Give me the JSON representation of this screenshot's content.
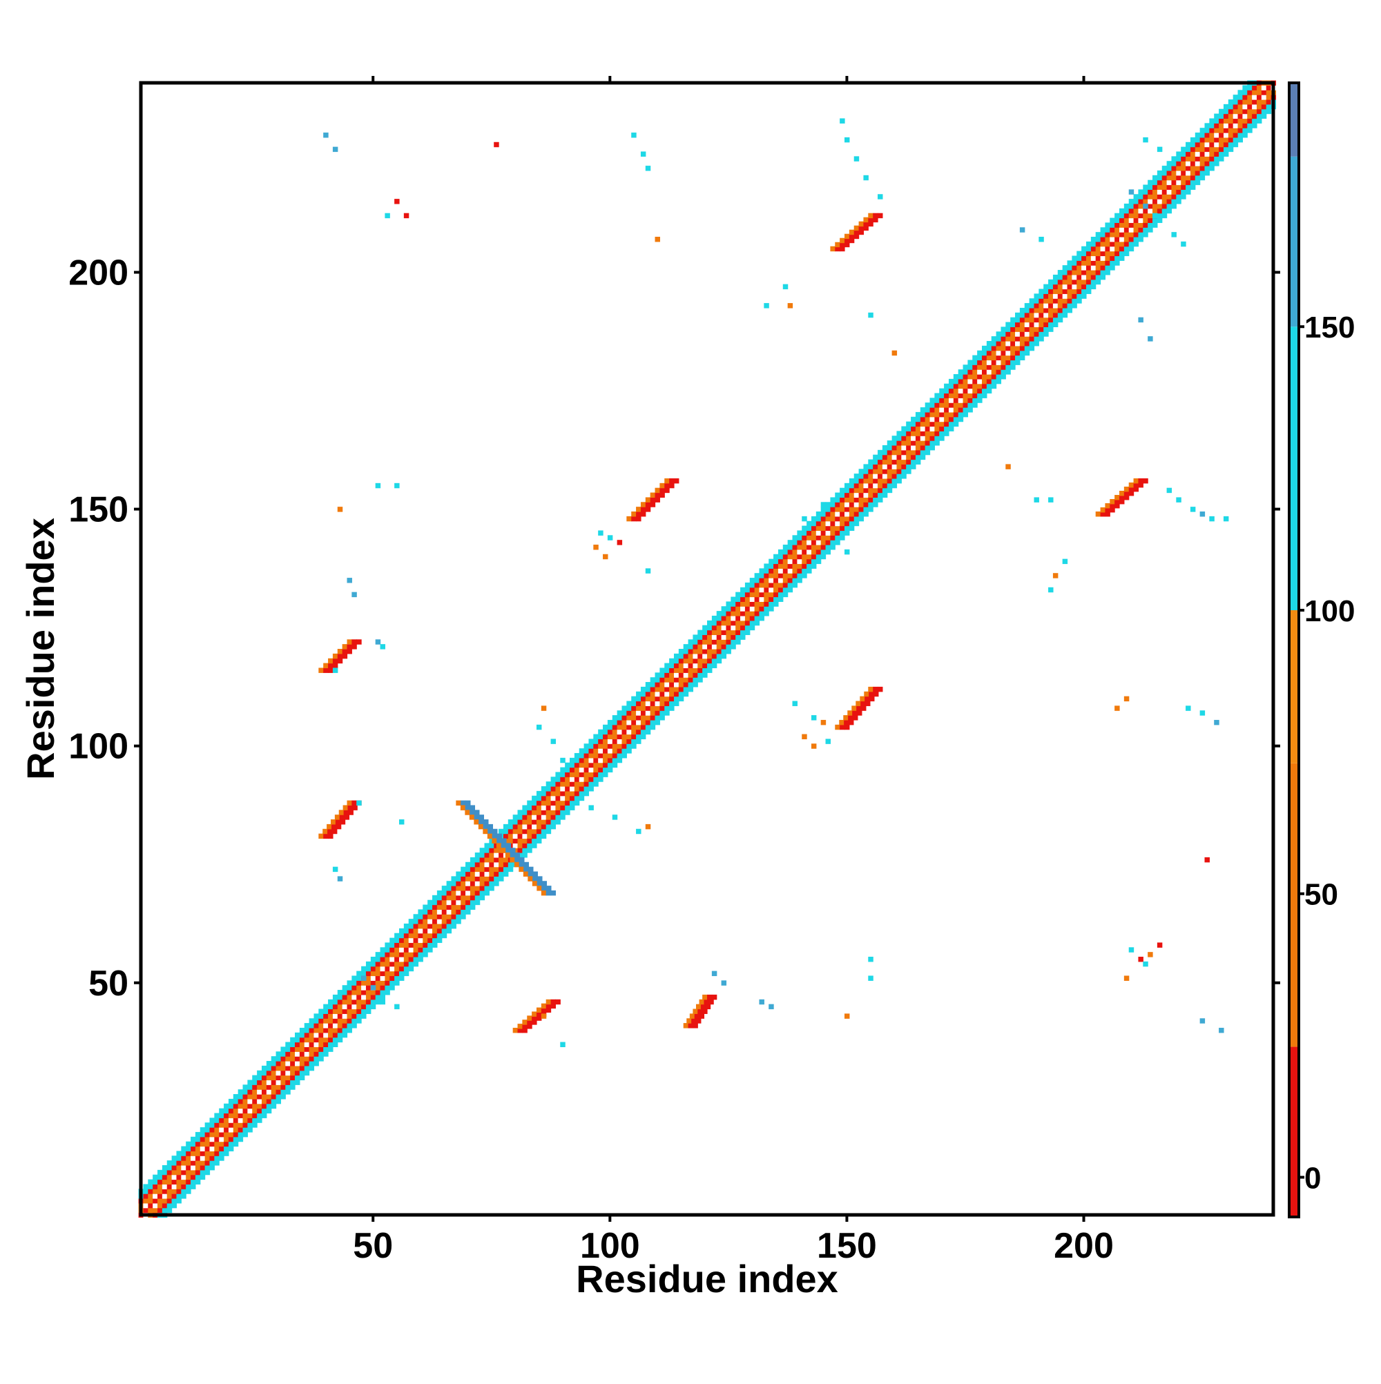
{
  "chart_data": {
    "type": "heatmap",
    "title": "",
    "xlabel": "Residue index",
    "ylabel": "Residue index",
    "xlim": [
      1,
      240
    ],
    "ylim": [
      1,
      240
    ],
    "x_ticks": [
      50,
      100,
      150,
      200
    ],
    "y_ticks": [
      50,
      100,
      150,
      200
    ],
    "grid": false,
    "colorbar": {
      "ticks": [
        0,
        50,
        100,
        150
      ],
      "range": [
        -7,
        193
      ],
      "bands": [
        {
          "from": -7,
          "to": 23,
          "color": "#e8130f"
        },
        {
          "from": 23,
          "to": 73,
          "color": "#f07a0c"
        },
        {
          "from": 73,
          "to": 100,
          "color": "#f28c12"
        },
        {
          "from": 100,
          "to": 150,
          "color": "#1ed8e6"
        },
        {
          "from": 150,
          "to": 180,
          "color": "#3fa9d3"
        },
        {
          "from": 180,
          "to": 193,
          "color": "#5b7fb5"
        }
      ]
    },
    "diagonal_band": {
      "from": 1,
      "to": 240,
      "half_width": 5,
      "colors": [
        "#e8130f",
        "#f07a0c",
        "#1ed8e6"
      ]
    },
    "strands": [
      {
        "x0": 40,
        "y0": 81,
        "x1": 46,
        "y1": 88,
        "color": "#e8130f"
      },
      {
        "x0": 40,
        "y0": 116,
        "x1": 46,
        "y1": 122,
        "color": "#e8130f"
      },
      {
        "x0": 81,
        "y0": 40,
        "x1": 88,
        "y1": 46,
        "color": "#e8130f"
      },
      {
        "x0": 117,
        "y0": 41,
        "x1": 121,
        "y1": 47,
        "color": "#e8130f"
      },
      {
        "x0": 105,
        "y0": 148,
        "x1": 113,
        "y1": 156,
        "color": "#e8130f"
      },
      {
        "x0": 149,
        "y0": 104,
        "x1": 156,
        "y1": 112,
        "color": "#e8130f"
      },
      {
        "x0": 148,
        "y0": 205,
        "x1": 156,
        "y1": 212,
        "color": "#e8130f"
      },
      {
        "x0": 204,
        "y0": 149,
        "x1": 212,
        "y1": 156,
        "color": "#e8130f"
      },
      {
        "x0": 69,
        "y0": 88,
        "x1": 87,
        "y1": 69,
        "color": "#3f8fc8"
      }
    ],
    "points": [
      {
        "x": 51,
        "y": 155,
        "v": 110
      },
      {
        "x": 55,
        "y": 155,
        "v": 110
      },
      {
        "x": 43,
        "y": 150,
        "v": 40
      },
      {
        "x": 51,
        "y": 122,
        "v": 160
      },
      {
        "x": 52,
        "y": 121,
        "v": 110
      },
      {
        "x": 42,
        "y": 116,
        "v": 110
      },
      {
        "x": 45,
        "y": 135,
        "v": 160
      },
      {
        "x": 46,
        "y": 132,
        "v": 160
      },
      {
        "x": 47,
        "y": 88,
        "v": 110
      },
      {
        "x": 56,
        "y": 84,
        "v": 110
      },
      {
        "x": 42,
        "y": 74,
        "v": 110
      },
      {
        "x": 43,
        "y": 72,
        "v": 160
      },
      {
        "x": 48,
        "y": 51,
        "v": 160
      },
      {
        "x": 50,
        "y": 49,
        "v": 160
      },
      {
        "x": 52,
        "y": 46,
        "v": 110
      },
      {
        "x": 55,
        "y": 45,
        "v": 110
      },
      {
        "x": 90,
        "y": 37,
        "v": 110
      },
      {
        "x": 86,
        "y": 43,
        "v": 40
      },
      {
        "x": 122,
        "y": 52,
        "v": 160
      },
      {
        "x": 124,
        "y": 50,
        "v": 160
      },
      {
        "x": 132,
        "y": 46,
        "v": 160
      },
      {
        "x": 134,
        "y": 45,
        "v": 160
      },
      {
        "x": 155,
        "y": 51,
        "v": 110
      },
      {
        "x": 155,
        "y": 55,
        "v": 110
      },
      {
        "x": 150,
        "y": 43,
        "v": 40
      },
      {
        "x": 40,
        "y": 229,
        "v": 160
      },
      {
        "x": 42,
        "y": 226,
        "v": 160
      },
      {
        "x": 76,
        "y": 227,
        "v": 0
      },
      {
        "x": 55,
        "y": 215,
        "v": 20
      },
      {
        "x": 57,
        "y": 212,
        "v": 20
      },
      {
        "x": 53,
        "y": 212,
        "v": 110
      },
      {
        "x": 105,
        "y": 229,
        "v": 110
      },
      {
        "x": 107,
        "y": 225,
        "v": 110
      },
      {
        "x": 108,
        "y": 222,
        "v": 110
      },
      {
        "x": 110,
        "y": 207,
        "v": 40
      },
      {
        "x": 149,
        "y": 232,
        "v": 110
      },
      {
        "x": 150,
        "y": 228,
        "v": 110
      },
      {
        "x": 152,
        "y": 224,
        "v": 110
      },
      {
        "x": 154,
        "y": 220,
        "v": 110
      },
      {
        "x": 157,
        "y": 216,
        "v": 110
      },
      {
        "x": 133,
        "y": 193,
        "v": 110
      },
      {
        "x": 137,
        "y": 197,
        "v": 110
      },
      {
        "x": 138,
        "y": 193,
        "v": 40
      },
      {
        "x": 155,
        "y": 191,
        "v": 110
      },
      {
        "x": 160,
        "y": 183,
        "v": 40
      },
      {
        "x": 187,
        "y": 209,
        "v": 160
      },
      {
        "x": 191,
        "y": 207,
        "v": 110
      },
      {
        "x": 213,
        "y": 228,
        "v": 110
      },
      {
        "x": 216,
        "y": 226,
        "v": 110
      },
      {
        "x": 212,
        "y": 190,
        "v": 160
      },
      {
        "x": 214,
        "y": 186,
        "v": 160
      },
      {
        "x": 184,
        "y": 159,
        "v": 40
      },
      {
        "x": 190,
        "y": 152,
        "v": 110
      },
      {
        "x": 193,
        "y": 152,
        "v": 110
      },
      {
        "x": 218,
        "y": 154,
        "v": 110
      },
      {
        "x": 220,
        "y": 152,
        "v": 110
      },
      {
        "x": 223,
        "y": 150,
        "v": 110
      },
      {
        "x": 225,
        "y": 149,
        "v": 160
      },
      {
        "x": 227,
        "y": 148,
        "v": 110
      },
      {
        "x": 230,
        "y": 148,
        "v": 110
      },
      {
        "x": 196,
        "y": 139,
        "v": 110
      },
      {
        "x": 194,
        "y": 136,
        "v": 40
      },
      {
        "x": 193,
        "y": 133,
        "v": 110
      },
      {
        "x": 98,
        "y": 145,
        "v": 110
      },
      {
        "x": 100,
        "y": 144,
        "v": 110
      },
      {
        "x": 97,
        "y": 142,
        "v": 40
      },
      {
        "x": 99,
        "y": 140,
        "v": 40
      },
      {
        "x": 102,
        "y": 143,
        "v": 20
      },
      {
        "x": 108,
        "y": 137,
        "v": 110
      },
      {
        "x": 139,
        "y": 109,
        "v": 110
      },
      {
        "x": 143,
        "y": 106,
        "v": 110
      },
      {
        "x": 141,
        "y": 102,
        "v": 40
      },
      {
        "x": 143,
        "y": 100,
        "v": 40
      },
      {
        "x": 146,
        "y": 101,
        "v": 110
      },
      {
        "x": 145,
        "y": 105,
        "v": 40
      },
      {
        "x": 207,
        "y": 108,
        "v": 40
      },
      {
        "x": 209,
        "y": 110,
        "v": 40
      },
      {
        "x": 222,
        "y": 108,
        "v": 110
      },
      {
        "x": 225,
        "y": 107,
        "v": 110
      },
      {
        "x": 228,
        "y": 105,
        "v": 160
      },
      {
        "x": 226,
        "y": 76,
        "v": 0
      },
      {
        "x": 210,
        "y": 57,
        "v": 110
      },
      {
        "x": 212,
        "y": 55,
        "v": 20
      },
      {
        "x": 216,
        "y": 58,
        "v": 0
      },
      {
        "x": 214,
        "y": 56,
        "v": 40
      },
      {
        "x": 209,
        "y": 51,
        "v": 40
      },
      {
        "x": 213,
        "y": 54,
        "v": 110
      },
      {
        "x": 225,
        "y": 42,
        "v": 160
      },
      {
        "x": 229,
        "y": 40,
        "v": 160
      },
      {
        "x": 108,
        "y": 83,
        "v": 40
      },
      {
        "x": 106,
        "y": 82,
        "v": 110
      },
      {
        "x": 101,
        "y": 85,
        "v": 110
      },
      {
        "x": 96,
        "y": 87,
        "v": 110
      },
      {
        "x": 86,
        "y": 108,
        "v": 40
      },
      {
        "x": 85,
        "y": 104,
        "v": 110
      },
      {
        "x": 88,
        "y": 101,
        "v": 110
      },
      {
        "x": 90,
        "y": 97,
        "v": 110
      },
      {
        "x": 210,
        "y": 217,
        "v": 160
      },
      {
        "x": 213,
        "y": 214,
        "v": 160
      },
      {
        "x": 215,
        "y": 212,
        "v": 110
      },
      {
        "x": 219,
        "y": 208,
        "v": 110
      },
      {
        "x": 221,
        "y": 206,
        "v": 110
      },
      {
        "x": 141,
        "y": 148,
        "v": 110
      },
      {
        "x": 145,
        "y": 151,
        "v": 110
      },
      {
        "x": 150,
        "y": 141,
        "v": 110
      }
    ]
  }
}
